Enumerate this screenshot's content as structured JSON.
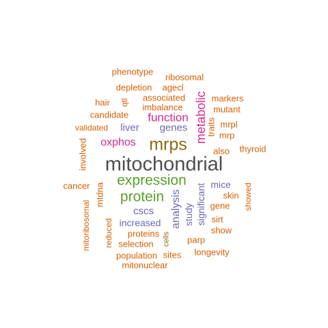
{
  "words": [
    {
      "text": "mitochondrial",
      "color": "#4d4d4d"
    },
    {
      "text": "mrps",
      "color": "#8c6a16"
    },
    {
      "text": "expression",
      "color": "#5aa02c"
    },
    {
      "text": "protein",
      "color": "#5aa02c"
    },
    {
      "text": "metabolic",
      "color": "#d62a8a"
    },
    {
      "text": "function",
      "color": "#d62a8a"
    },
    {
      "text": "oxphos",
      "color": "#d62a8a"
    },
    {
      "text": "genes",
      "color": "#6a6ab0"
    },
    {
      "text": "liver",
      "color": "#6a6ab0"
    },
    {
      "text": "analysis",
      "color": "#6a6ab0"
    },
    {
      "text": "study",
      "color": "#6a6ab0"
    },
    {
      "text": "significant",
      "color": "#6a6ab0"
    },
    {
      "text": "mice",
      "color": "#6a6ab0"
    },
    {
      "text": "cscs",
      "color": "#6a6ab0"
    },
    {
      "text": "increased",
      "color": "#6a6ab0"
    },
    {
      "text": "cells",
      "color": "#8c6a16"
    },
    {
      "text": "phenotype",
      "color": "#d95f02"
    },
    {
      "text": "ribosomal",
      "color": "#d95f02"
    },
    {
      "text": "depletion",
      "color": "#d95f02"
    },
    {
      "text": "agecl",
      "color": "#d95f02"
    },
    {
      "text": "markers",
      "color": "#d95f02"
    },
    {
      "text": "hair",
      "color": "#d95f02"
    },
    {
      "text": "qtl",
      "color": "#d95f02"
    },
    {
      "text": "associated",
      "color": "#d95f02"
    },
    {
      "text": "mutant",
      "color": "#d95f02"
    },
    {
      "text": "imbalance",
      "color": "#d95f02"
    },
    {
      "text": "candidate",
      "color": "#d95f02"
    },
    {
      "text": "traits",
      "color": "#d95f02"
    },
    {
      "text": "mrpl",
      "color": "#d95f02"
    },
    {
      "text": "validated",
      "color": "#d95f02"
    },
    {
      "text": "mrp",
      "color": "#d95f02"
    },
    {
      "text": "involved",
      "color": "#d95f02"
    },
    {
      "text": "also",
      "color": "#d95f02"
    },
    {
      "text": "thyroid",
      "color": "#d95f02"
    },
    {
      "text": "cancer",
      "color": "#d95f02"
    },
    {
      "text": "mtdna",
      "color": "#d95f02"
    },
    {
      "text": "skin",
      "color": "#d95f02"
    },
    {
      "text": "showed",
      "color": "#d95f02"
    },
    {
      "text": "gene",
      "color": "#d95f02"
    },
    {
      "text": "mitoribosomal",
      "color": "#d95f02"
    },
    {
      "text": "reduced",
      "color": "#d95f02"
    },
    {
      "text": "sirt",
      "color": "#d95f02"
    },
    {
      "text": "proteins",
      "color": "#d95f02"
    },
    {
      "text": "show",
      "color": "#d95f02"
    },
    {
      "text": "parp",
      "color": "#d95f02"
    },
    {
      "text": "selection",
      "color": "#d95f02"
    },
    {
      "text": "longevity",
      "color": "#d95f02"
    },
    {
      "text": "population",
      "color": "#d95f02"
    },
    {
      "text": "sites",
      "color": "#d95f02"
    },
    {
      "text": "mitonuclear",
      "color": "#d95f02"
    }
  ]
}
